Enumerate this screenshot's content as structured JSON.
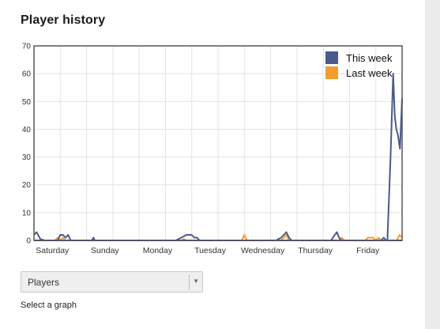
{
  "panel": {
    "title": "Player history"
  },
  "graph_selector": {
    "value": "Players",
    "hint": "Select a graph"
  },
  "chart_data": {
    "type": "line",
    "title": "",
    "xlabel": "",
    "ylabel": "",
    "ylim": [
      0,
      70
    ],
    "yticks": [
      0,
      10,
      20,
      30,
      40,
      50,
      60,
      70
    ],
    "xlim": [
      0,
      7
    ],
    "x_tick_labels": [
      "Saturday",
      "Sunday",
      "Monday",
      "Tuesday",
      "Wednesday",
      "Thursday",
      "Friday"
    ],
    "grid": true,
    "legend_position": "top-right",
    "series": [
      {
        "name": "This week",
        "color": "#4a5a8c",
        "points": [
          [
            0.0,
            2
          ],
          [
            0.05,
            3
          ],
          [
            0.12,
            0.5
          ],
          [
            0.2,
            0
          ],
          [
            0.45,
            0
          ],
          [
            0.5,
            2
          ],
          [
            0.55,
            2
          ],
          [
            0.6,
            1
          ],
          [
            0.65,
            2
          ],
          [
            0.7,
            0
          ],
          [
            1.0,
            0
          ],
          [
            1.1,
            0
          ],
          [
            1.13,
            1
          ],
          [
            1.16,
            0
          ],
          [
            2.7,
            0
          ],
          [
            2.8,
            1
          ],
          [
            2.9,
            2
          ],
          [
            3.0,
            2
          ],
          [
            3.05,
            1
          ],
          [
            3.1,
            1
          ],
          [
            3.15,
            0
          ],
          [
            4.6,
            0
          ],
          [
            4.7,
            1
          ],
          [
            4.75,
            2
          ],
          [
            4.8,
            3
          ],
          [
            4.85,
            1
          ],
          [
            4.9,
            0
          ],
          [
            5.65,
            0
          ],
          [
            5.72,
            2
          ],
          [
            5.76,
            3
          ],
          [
            5.8,
            1
          ],
          [
            5.85,
            0
          ],
          [
            6.6,
            0
          ],
          [
            6.65,
            1
          ],
          [
            6.7,
            0
          ],
          [
            6.72,
            0
          ],
          [
            6.78,
            30
          ],
          [
            6.83,
            60
          ],
          [
            6.86,
            45
          ],
          [
            6.89,
            40
          ],
          [
            6.92,
            38
          ],
          [
            6.96,
            33
          ],
          [
            7.0,
            51
          ]
        ]
      },
      {
        "name": "Last week",
        "color": "#f39c2c",
        "points": [
          [
            0.0,
            0
          ],
          [
            0.4,
            0
          ],
          [
            0.45,
            1
          ],
          [
            0.5,
            0
          ],
          [
            0.55,
            1
          ],
          [
            0.6,
            0
          ],
          [
            2.8,
            0
          ],
          [
            2.85,
            0.5
          ],
          [
            2.9,
            0
          ],
          [
            3.95,
            0
          ],
          [
            4.0,
            2
          ],
          [
            4.05,
            0
          ],
          [
            4.7,
            0
          ],
          [
            4.75,
            1
          ],
          [
            4.8,
            2
          ],
          [
            4.85,
            0
          ],
          [
            5.8,
            0
          ],
          [
            5.85,
            1
          ],
          [
            5.9,
            0
          ],
          [
            6.3,
            0
          ],
          [
            6.35,
            1
          ],
          [
            6.45,
            1
          ],
          [
            6.5,
            0
          ],
          [
            6.55,
            1
          ],
          [
            6.6,
            0
          ],
          [
            6.9,
            0
          ],
          [
            6.95,
            2
          ],
          [
            7.0,
            1
          ]
        ]
      }
    ]
  }
}
